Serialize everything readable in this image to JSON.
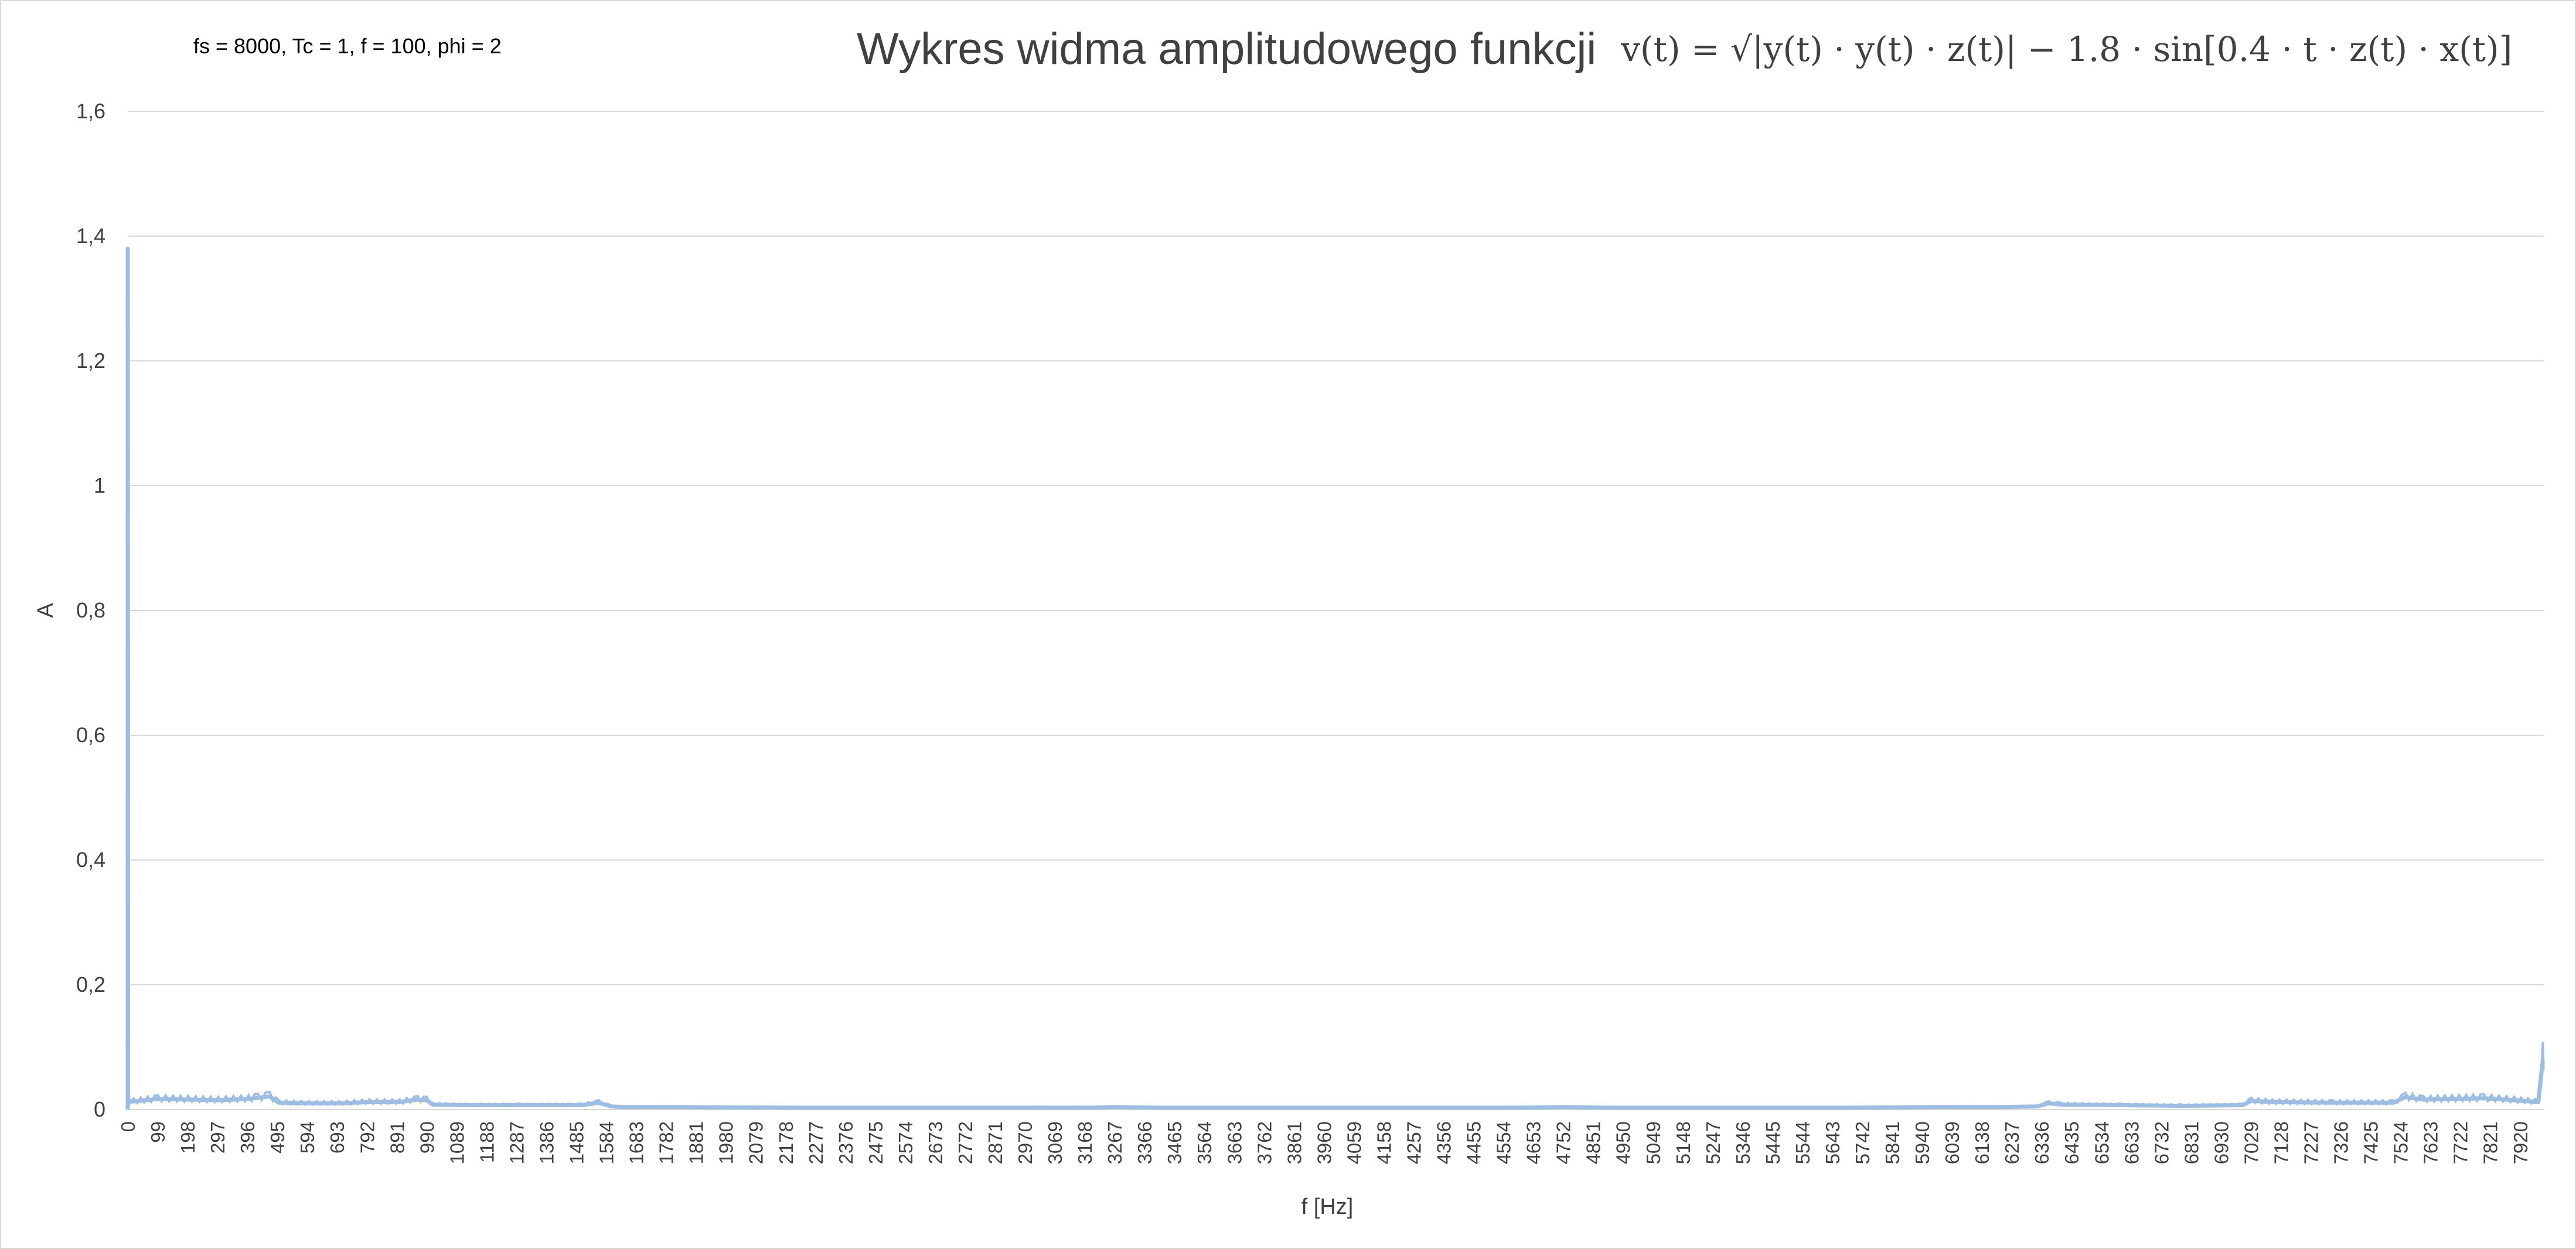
{
  "chart_data": {
    "type": "line",
    "params_note": "fs = 8000, Tc = 1, f = 100, phi = 2",
    "title": "Wykres widma amplitudowego funkcji",
    "title_formula": "v(t) = √|y(t) · y(t) · z(t)| − 1.8 · sin[0.4 · t · z(t) · x(t)]",
    "xlabel": "f [Hz]",
    "ylabel": "A",
    "ylim": [
      0,
      1.6
    ],
    "xlim": [
      0,
      8000
    ],
    "grid": true,
    "legend": "none",
    "y_ticks": [
      "0",
      "0,2",
      "0,4",
      "0,6",
      "0,8",
      "1",
      "1,2",
      "1,4",
      "1,6"
    ],
    "x_ticks": [
      "0",
      "99",
      "198",
      "297",
      "396",
      "495",
      "594",
      "693",
      "792",
      "891",
      "990",
      "1089",
      "1188",
      "1287",
      "1386",
      "1485",
      "1584",
      "1683",
      "1782",
      "1881",
      "1980",
      "2079",
      "2178",
      "2277",
      "2376",
      "2475",
      "2574",
      "2673",
      "2772",
      "2871",
      "2970",
      "3069",
      "3168",
      "3267",
      "3366",
      "3465",
      "3564",
      "3663",
      "3762",
      "3861",
      "3960",
      "4059",
      "4158",
      "4257",
      "4356",
      "4455",
      "4554",
      "4653",
      "4752",
      "4851",
      "4950",
      "5049",
      "5148",
      "5247",
      "5346",
      "5445",
      "5544",
      "5643",
      "5742",
      "5841",
      "5940",
      "6039",
      "6138",
      "6237",
      "6336",
      "6435",
      "6534",
      "6633",
      "6732",
      "6831",
      "6930",
      "7029",
      "7128",
      "7227",
      "7326",
      "7425",
      "7524",
      "7623",
      "7722",
      "7821",
      "7920"
    ],
    "series": [
      {
        "color": "#9dbde2",
        "x": [
          0,
          1,
          20,
          100,
          200,
          300,
          400,
          430,
          470,
          500,
          600,
          700,
          800,
          900,
          960,
          990,
          1010,
          1100,
          1300,
          1500,
          1560,
          1600,
          1640,
          1800,
          2200,
          2600,
          3000,
          3200,
          3260,
          3400,
          3800,
          4200,
          4600,
          4760,
          4900,
          5300,
          5700,
          6000,
          6200,
          6320,
          6360,
          6400,
          6600,
          6800,
          7000,
          7030,
          7100,
          7300,
          7500,
          7540,
          7600,
          7800,
          7900,
          7980,
          7995,
          7999
        ],
        "values": [
          1.38,
          0.015,
          0.013,
          0.017,
          0.016,
          0.015,
          0.017,
          0.019,
          0.021,
          0.011,
          0.01,
          0.01,
          0.012,
          0.012,
          0.016,
          0.015,
          0.008,
          0.007,
          0.007,
          0.007,
          0.011,
          0.005,
          0.004,
          0.004,
          0.003,
          0.003,
          0.003,
          0.003,
          0.004,
          0.003,
          0.003,
          0.003,
          0.003,
          0.004,
          0.003,
          0.003,
          0.003,
          0.004,
          0.004,
          0.005,
          0.01,
          0.008,
          0.007,
          0.006,
          0.007,
          0.014,
          0.012,
          0.011,
          0.011,
          0.02,
          0.016,
          0.018,
          0.015,
          0.012,
          0.08,
          0.08
        ]
      }
    ]
  }
}
